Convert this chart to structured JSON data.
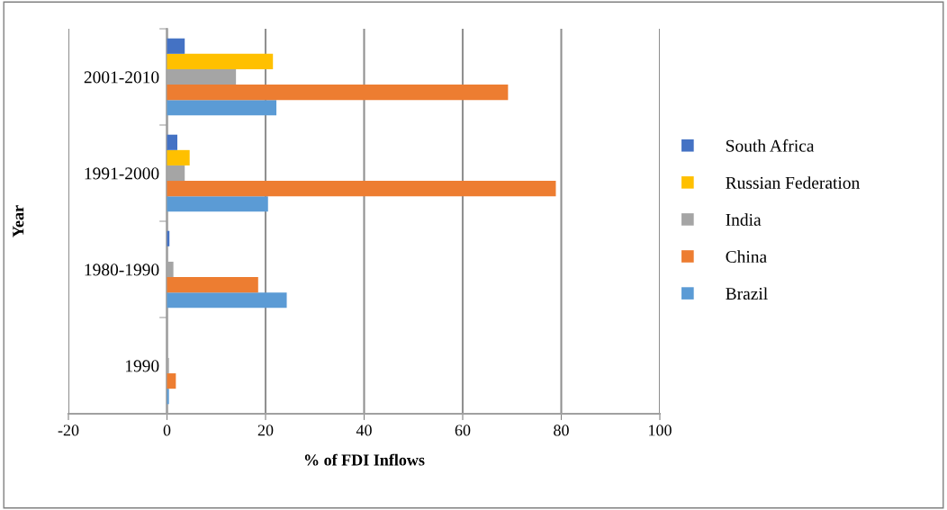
{
  "chart_data": {
    "type": "bar",
    "orientation": "horizontal",
    "xlabel": "% of FDI Inflows",
    "ylabel": "Year",
    "categories": [
      "2001-2010",
      "1991-2000",
      "1980-1990",
      "1990"
    ],
    "series": [
      {
        "name": "Brazil",
        "color": "#5b9bd5",
        "values": [
          22.2,
          20.5,
          24.3,
          0.4
        ]
      },
      {
        "name": "China",
        "color": "#ed7d31",
        "values": [
          69.2,
          78.9,
          18.5,
          1.8
        ]
      },
      {
        "name": "India",
        "color": "#a5a5a5",
        "values": [
          14,
          3.6,
          1.3,
          0.4
        ]
      },
      {
        "name": "Russian Federation",
        "color": "#ffc000",
        "values": [
          21.5,
          4.6,
          0,
          0
        ]
      },
      {
        "name": "South Africa",
        "color": "#4472c4",
        "values": [
          3.6,
          2.1,
          0.5,
          0
        ]
      }
    ],
    "xlim": [
      -20,
      100
    ],
    "xticks": [
      -20,
      0,
      20,
      40,
      60,
      80,
      100
    ],
    "grid": "x",
    "legend": "right"
  }
}
